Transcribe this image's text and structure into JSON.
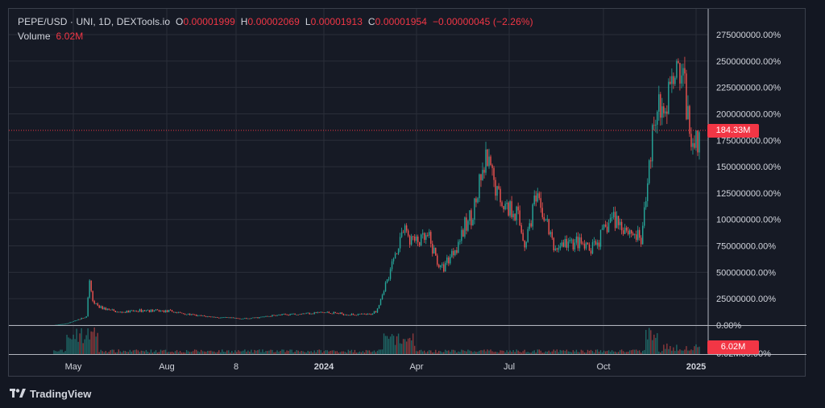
{
  "legend": {
    "symbol": "PEPE/USD · UNI, 1D, DEXTools.io",
    "open_label": "O",
    "open": "0.00001999",
    "high_label": "H",
    "high": "0.00002069",
    "low_label": "L",
    "low": "0.00001913",
    "close_label": "C",
    "close": "0.00001954",
    "change": "−0.00000045 (−2.26%)",
    "volume_label": "Volume",
    "volume": "6.02M"
  },
  "price_tag": "184.33M",
  "volume_tag": "6.02M",
  "brand": "TradingView",
  "colors": {
    "up": "#26a69a",
    "down": "#ef5350",
    "background": "#131722",
    "grid": "#2a2e39",
    "text": "#d1d4dc",
    "accent": "#f23645"
  },
  "chart_data": {
    "type": "candlestick",
    "x_ticks": [
      "May",
      "Aug",
      "8",
      "2024",
      "Apr",
      "Jul",
      "Oct",
      "2025"
    ],
    "y_ticks": [
      "275000000.00%",
      "250000000.00%",
      "225000000.00%",
      "200000000.00%",
      "175000000.00%",
      "150000000.00%",
      "125000000.00%",
      "100000000.00%",
      "75000000.00%",
      "50000000.00%",
      "25000000.00%",
      "0.00%"
    ],
    "volume_axis_label": "6.02M00.00%",
    "ylim": [
      0,
      275000000
    ],
    "current_value": 184330000,
    "grid": true,
    "price_path": [
      [
        0.0,
        0
      ],
      [
        0.02,
        1500000
      ],
      [
        0.05,
        8000000
      ],
      [
        0.055,
        40000000
      ],
      [
        0.06,
        25000000
      ],
      [
        0.07,
        17000000
      ],
      [
        0.1,
        12000000
      ],
      [
        0.14,
        14000000
      ],
      [
        0.18,
        13000000
      ],
      [
        0.22,
        9000000
      ],
      [
        0.26,
        7000000
      ],
      [
        0.3,
        6000000
      ],
      [
        0.34,
        9000000
      ],
      [
        0.38,
        11000000
      ],
      [
        0.42,
        12000000
      ],
      [
        0.46,
        10000000
      ],
      [
        0.49,
        10000000
      ],
      [
        0.5,
        14000000
      ],
      [
        0.52,
        50000000
      ],
      [
        0.54,
        90000000
      ],
      [
        0.56,
        78000000
      ],
      [
        0.58,
        82000000
      ],
      [
        0.6,
        52000000
      ],
      [
        0.62,
        72000000
      ],
      [
        0.64,
        95000000
      ],
      [
        0.655,
        118000000
      ],
      [
        0.67,
        155000000
      ],
      [
        0.685,
        128000000
      ],
      [
        0.7,
        112000000
      ],
      [
        0.715,
        110000000
      ],
      [
        0.73,
        77000000
      ],
      [
        0.745,
        118000000
      ],
      [
        0.76,
        103000000
      ],
      [
        0.775,
        72000000
      ],
      [
        0.79,
        77000000
      ],
      [
        0.81,
        78000000
      ],
      [
        0.83,
        70000000
      ],
      [
        0.85,
        85000000
      ],
      [
        0.865,
        103000000
      ],
      [
        0.88,
        95000000
      ],
      [
        0.895,
        88000000
      ],
      [
        0.91,
        80000000
      ],
      [
        0.92,
        130000000
      ],
      [
        0.93,
        205000000
      ],
      [
        0.945,
        195000000
      ],
      [
        0.955,
        218000000
      ],
      [
        0.965,
        255000000
      ],
      [
        0.975,
        232000000
      ],
      [
        0.985,
        178000000
      ],
      [
        0.995,
        178000000
      ],
      [
        1.0,
        184000000
      ]
    ]
  }
}
